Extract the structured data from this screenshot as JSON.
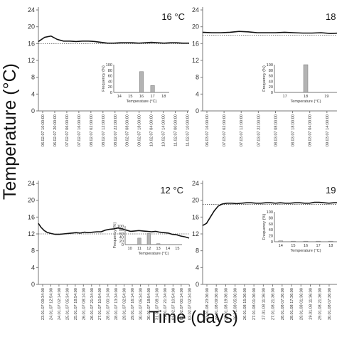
{
  "figure": {
    "ylabel": "Temperature (°C)",
    "xlabel": "Time (days)"
  },
  "chart_data": [
    {
      "type": "line",
      "title": "16 °C",
      "ylim": [
        0,
        24
      ],
      "y_ticks": [
        "0",
        "4",
        "8",
        "12",
        "16",
        "20",
        "24"
      ],
      "reference_value": 16,
      "x_ticks": [
        "06.02.07 10:00:00",
        "06.02.07 20:00:00",
        "07.02.07 06:00:00",
        "07.02.07 16:00:00",
        "08.02.07 02:00:00",
        "08.02.07 12:00:00",
        "08.02.07 22:00:00",
        "09.02.07 08:00:00",
        "09.02.07 18:00:00",
        "10.02.07 04:00:00",
        "10.02.07 14:00:00",
        "11.02.07 00:00:00",
        "11.02.07 10:00:00"
      ],
      "series": [
        {
          "x": [
            0,
            0.5,
            1,
            1.5,
            2,
            2.5,
            3,
            3.5,
            4,
            4.5,
            5,
            5.5,
            6,
            6.5,
            7,
            7.5,
            8,
            8.5,
            9,
            9.5,
            10,
            10.5,
            11,
            11.5,
            12
          ],
          "values": [
            16.5,
            17.5,
            17.8,
            17.0,
            16.6,
            16.6,
            16.5,
            16.6,
            16.6,
            16.5,
            16.3,
            16.1,
            16.1,
            16.2,
            16.2,
            16.2,
            16.1,
            16.2,
            16.3,
            16.2,
            16.1,
            16.2,
            16.2,
            16.1,
            16.1
          ]
        }
      ],
      "inset": {
        "type": "bar",
        "categories": [
          "14",
          "15",
          "16",
          "17",
          "18"
        ],
        "values": [
          0,
          0,
          75,
          25,
          0
        ],
        "ylim": [
          0,
          100
        ],
        "y_ticks": [
          "0",
          "20",
          "40",
          "60",
          "80",
          "100"
        ],
        "xlabel": "Temperature (°C)",
        "ylabel": "Frequency (%)"
      }
    },
    {
      "type": "line",
      "title": "18 °C",
      "ylim": [
        0,
        24
      ],
      "y_ticks": [
        "0",
        "4",
        "8",
        "12",
        "16",
        "20",
        "24"
      ],
      "reference_value": 18,
      "x_ticks": [
        "06.03.07 16:00:00",
        "07.03.07 02:00:00",
        "07.03.07 12:00:00",
        "07.03.07 22:00:00",
        "08.03.07 08:00:00",
        "08.03.07 18:00:00",
        "09.03.07 04:00:00",
        "09.03.07 14:00:00",
        "10.03.07 00:00:00"
      ],
      "series": [
        {
          "x": [
            0,
            0.5,
            1,
            1.5,
            2,
            2.5,
            3,
            3.5,
            4,
            4.5,
            5,
            5.5,
            6,
            6.5,
            7,
            7.5,
            8
          ],
          "values": [
            18.7,
            18.6,
            18.6,
            18.7,
            18.9,
            18.8,
            18.6,
            18.6,
            18.6,
            18.7,
            18.6,
            18.5,
            18.5,
            18.6,
            18.4,
            18.5,
            18.5
          ]
        }
      ],
      "inset": {
        "type": "bar",
        "categories": [
          "17",
          "18",
          "19"
        ],
        "values": [
          0,
          100,
          0
        ],
        "ylim": [
          0,
          100
        ],
        "y_ticks": [
          "0",
          "20",
          "40",
          "60",
          "80",
          "100"
        ],
        "xlabel": "Temperature (°C)",
        "ylabel": "Frequency (%)"
      }
    },
    {
      "type": "line",
      "title": "12 °C",
      "ylim": [
        0,
        24
      ],
      "y_ticks": [
        "0",
        "4",
        "8",
        "12",
        "16",
        "20",
        "24"
      ],
      "reference_value": 12,
      "x_ticks": [
        "23.01.07 09:34:00",
        "24.01.07 12:54:00",
        "24.01.07 02:14:00",
        "25.01.07 05:34:00",
        "25.01.07 18:54:00",
        "26.01.07 08:14:00",
        "26.01.07 21:34:00",
        "27.01.07 10:54:00",
        "28.01.07 00:14:00",
        "28.01.07 13:34:00",
        "29.01.07 02:54:00",
        "29.01.07 16:14:00",
        "30.01.07 05:34:00",
        "30.01.07 18:54:00",
        "31.01.07 08:14:00",
        "31.01.07 21:34:00",
        "01.02.07 10:54:00",
        "02.02.07 00:14:00",
        "03.02.07 02:34:00"
      ],
      "series": [
        {
          "x": [
            0,
            0.3,
            0.7,
            1,
            1.5,
            2,
            2.5,
            3,
            3.5,
            4,
            4.5,
            5,
            5.5,
            6,
            6.5,
            7,
            7.5,
            8,
            8.5,
            9,
            9.5,
            10,
            10.5,
            11,
            11.5,
            12,
            12.5,
            13,
            13.5,
            14,
            14.5,
            15,
            15.5,
            16,
            16.5,
            17,
            17.5,
            18
          ],
          "values": [
            14.5,
            13.6,
            12.8,
            12.4,
            12.1,
            11.9,
            11.9,
            12.0,
            12.1,
            12.2,
            12.3,
            12.2,
            12.4,
            12.3,
            12.4,
            12.5,
            12.5,
            12.9,
            13.1,
            13.2,
            13.4,
            13.2,
            12.9,
            12.6,
            12.7,
            12.8,
            12.7,
            12.6,
            12.5,
            12.6,
            12.4,
            12.3,
            12.2,
            11.9,
            11.8,
            11.5,
            11.3,
            11.0
          ]
        }
      ],
      "inset": {
        "type": "bar",
        "categories": [
          "10",
          "11",
          "12",
          "13",
          "14",
          "15"
        ],
        "values": [
          0,
          35,
          60,
          5,
          0,
          0
        ],
        "ylim": [
          0,
          100
        ],
        "y_ticks": [
          "0",
          "20",
          "40",
          "60",
          "80",
          "100"
        ],
        "xlabel": "Temperature (°C)",
        "ylabel": "Frequency (%)"
      }
    },
    {
      "type": "line",
      "title": "19",
      "ylim": [
        0,
        24
      ],
      "y_ticks": [
        "0",
        "4",
        "8",
        "12",
        "16",
        "20",
        "24"
      ],
      "reference_value": 19,
      "x_ticks": [
        "23.01.08 23:36:00",
        "24.01.08 09:36:00",
        "25.01.08 19:36:00",
        "26.01.08 05:36:00",
        "26.01.08 15:36:00",
        "27.01.08 01:36:00",
        "27.01.08 11:36:00",
        "27.01.08 21:36:00",
        "28.01.08 07:36:00",
        "28.01.08 17:36:00",
        "29.01.08 01:36:00",
        "29.01.08 11:36:00",
        "29.01.08 21:36:00",
        "30.01.08 07:36:00",
        "30.01.08 17:36:00",
        "31.01.08 03:36:00"
      ],
      "series": [
        {
          "x": [
            0,
            0.4,
            0.8,
            1.2,
            1.6,
            2,
            2.5,
            3,
            3.5,
            4,
            4.5,
            5,
            5.5,
            6,
            6.5,
            7,
            7.5,
            8,
            8.5,
            9,
            9.5,
            10,
            10.5,
            11,
            11.5,
            12,
            12.5,
            13,
            13.5,
            14,
            14.5,
            15
          ],
          "values": [
            14.0,
            14.5,
            16.0,
            17.5,
            18.6,
            19.1,
            19.3,
            19.3,
            19.2,
            19.3,
            19.4,
            19.4,
            19.3,
            19.3,
            19.4,
            19.4,
            19.3,
            19.4,
            19.3,
            19.3,
            19.4,
            19.4,
            19.3,
            19.3,
            19.5,
            19.5,
            19.4,
            19.3,
            19.4,
            19.4,
            19.5,
            19.5
          ]
        }
      ],
      "inset": {
        "type": "bar",
        "categories": [
          "14",
          "15",
          "16",
          "17",
          "18"
        ],
        "values": [
          3,
          2,
          2,
          2,
          2
        ],
        "ylim": [
          0,
          100
        ],
        "y_ticks": [
          "0",
          "20",
          "40",
          "60",
          "80",
          "100"
        ],
        "xlabel": "Temperature (°C)",
        "ylabel": "Frequency (%)"
      }
    }
  ]
}
